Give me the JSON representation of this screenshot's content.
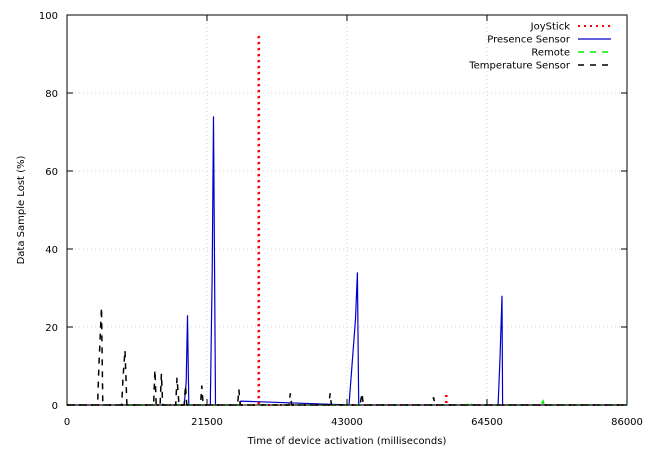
{
  "chart_data": {
    "type": "line",
    "xlabel": "Time of device activation (milliseconds)",
    "ylabel": "Data Sample Lost (%)",
    "xlim": [
      0,
      86000
    ],
    "ylim": [
      0,
      100
    ],
    "xticks": [
      0,
      21500,
      43000,
      64500,
      86000
    ],
    "xtick_labels": [
      "0",
      "21500",
      "43000",
      "64500",
      "86000"
    ],
    "yticks": [
      0,
      20,
      40,
      60,
      80,
      100
    ],
    "ytick_labels": [
      "0",
      "20",
      "40",
      "60",
      "80",
      "100"
    ],
    "grid": true,
    "legend_position": "top-right",
    "series": [
      {
        "name": "JoyStick",
        "color": "#ff0000",
        "style": "dotted",
        "x": [
          0,
          29400,
          29400,
          29500,
          29500,
          58200,
          58200,
          58300,
          58300,
          86000
        ],
        "y": [
          0,
          0,
          95,
          95,
          0,
          0,
          3,
          3,
          0,
          0
        ]
      },
      {
        "name": "Presence Sensor",
        "color": "#0000cc",
        "style": "solid",
        "x": [
          0,
          18000,
          18300,
          18500,
          18700,
          22000,
          22300,
          22500,
          22800,
          26500,
          26700,
          43300,
          44300,
          44600,
          44800,
          66200,
          66500,
          66800,
          66900,
          86000
        ],
        "y": [
          0,
          0,
          6,
          23,
          0,
          0,
          34,
          74,
          0,
          0,
          1,
          0,
          22,
          34,
          0,
          0,
          12,
          28,
          0,
          0
        ]
      },
      {
        "name": "Remote",
        "color": "#00ee00",
        "style": "dashed",
        "x": [
          0,
          61500,
          61800,
          62200,
          72800,
          73100,
          73300,
          86000
        ],
        "y": [
          0,
          0,
          1,
          0,
          0,
          1,
          0,
          0
        ]
      },
      {
        "name": "Temperature Sensor",
        "color": "#000000",
        "style": "dashed",
        "x": [
          0,
          4700,
          4900,
          5300,
          5500,
          8400,
          8600,
          8900,
          9200,
          13300,
          13500,
          13700,
          14300,
          14500,
          14700,
          16700,
          16900,
          17200,
          18000,
          18200,
          18400,
          20500,
          20700,
          20900,
          26200,
          26400,
          26600,
          34100,
          34300,
          34500,
          40200,
          40400,
          40600,
          45000,
          45300,
          45500,
          56100,
          56300,
          56500,
          86000
        ],
        "y": [
          0,
          0,
          10,
          25,
          0,
          0,
          7,
          14,
          0,
          0,
          9,
          0,
          0,
          8,
          0,
          0,
          7,
          0,
          0,
          5,
          0,
          0,
          5,
          0,
          0,
          4,
          0,
          0,
          3,
          0,
          0,
          3,
          0,
          0,
          3,
          0,
          0,
          2,
          0,
          0
        ]
      }
    ]
  }
}
